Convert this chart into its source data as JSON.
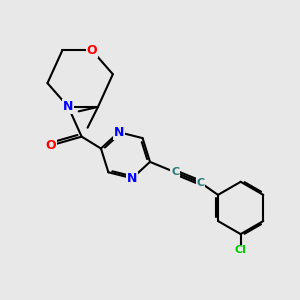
{
  "background_color": "#e8e8e8",
  "bond_color": "#000000",
  "atom_colors": {
    "O": "#ff0000",
    "N": "#0000ff",
    "Cl": "#00cc00",
    "C": "#2a7a7a"
  },
  "line_width": 1.5,
  "font_size_N": 9,
  "font_size_O": 9,
  "font_size_Cl": 8,
  "font_size_C": 8
}
